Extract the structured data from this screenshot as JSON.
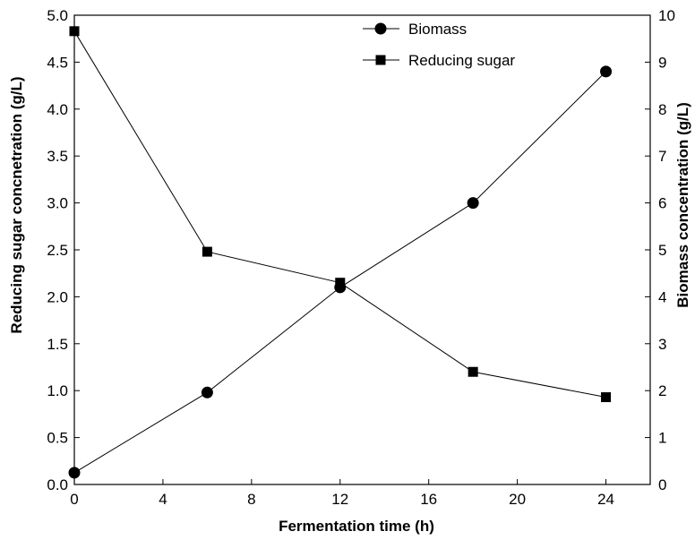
{
  "chart_data": {
    "type": "line",
    "title": "",
    "xlabel": "Fermentation time (h)",
    "ylabel_left": "Reducing sugar concnetration (g/L)",
    "ylabel_right": "Biomass concentration (g/L)",
    "xlim": [
      0,
      26
    ],
    "ylim_left": [
      0,
      5.0
    ],
    "ylim_right": [
      0,
      10
    ],
    "x_ticks": [
      "0",
      "4",
      "8",
      "12",
      "16",
      "20",
      "24"
    ],
    "y_left_ticks": [
      "0.0",
      "0.5",
      "1.0",
      "1.5",
      "2.0",
      "2.5",
      "3.0",
      "3.5",
      "4.0",
      "4.5",
      "5.0"
    ],
    "y_right_ticks": [
      "0",
      "1",
      "2",
      "3",
      "4",
      "5",
      "6",
      "7",
      "8",
      "9",
      "10"
    ],
    "legend_position": "top-right",
    "grid": false,
    "series": [
      {
        "name": "Biomass",
        "axis": "right",
        "marker": "circle",
        "x": [
          0,
          6,
          12,
          18,
          24
        ],
        "values": [
          0.25,
          1.96,
          4.2,
          6.0,
          8.8
        ]
      },
      {
        "name": "Reducing sugar",
        "axis": "left",
        "marker": "square",
        "x": [
          0,
          6,
          12,
          18,
          24
        ],
        "values": [
          4.83,
          2.48,
          2.15,
          1.2,
          0.93
        ]
      }
    ]
  }
}
